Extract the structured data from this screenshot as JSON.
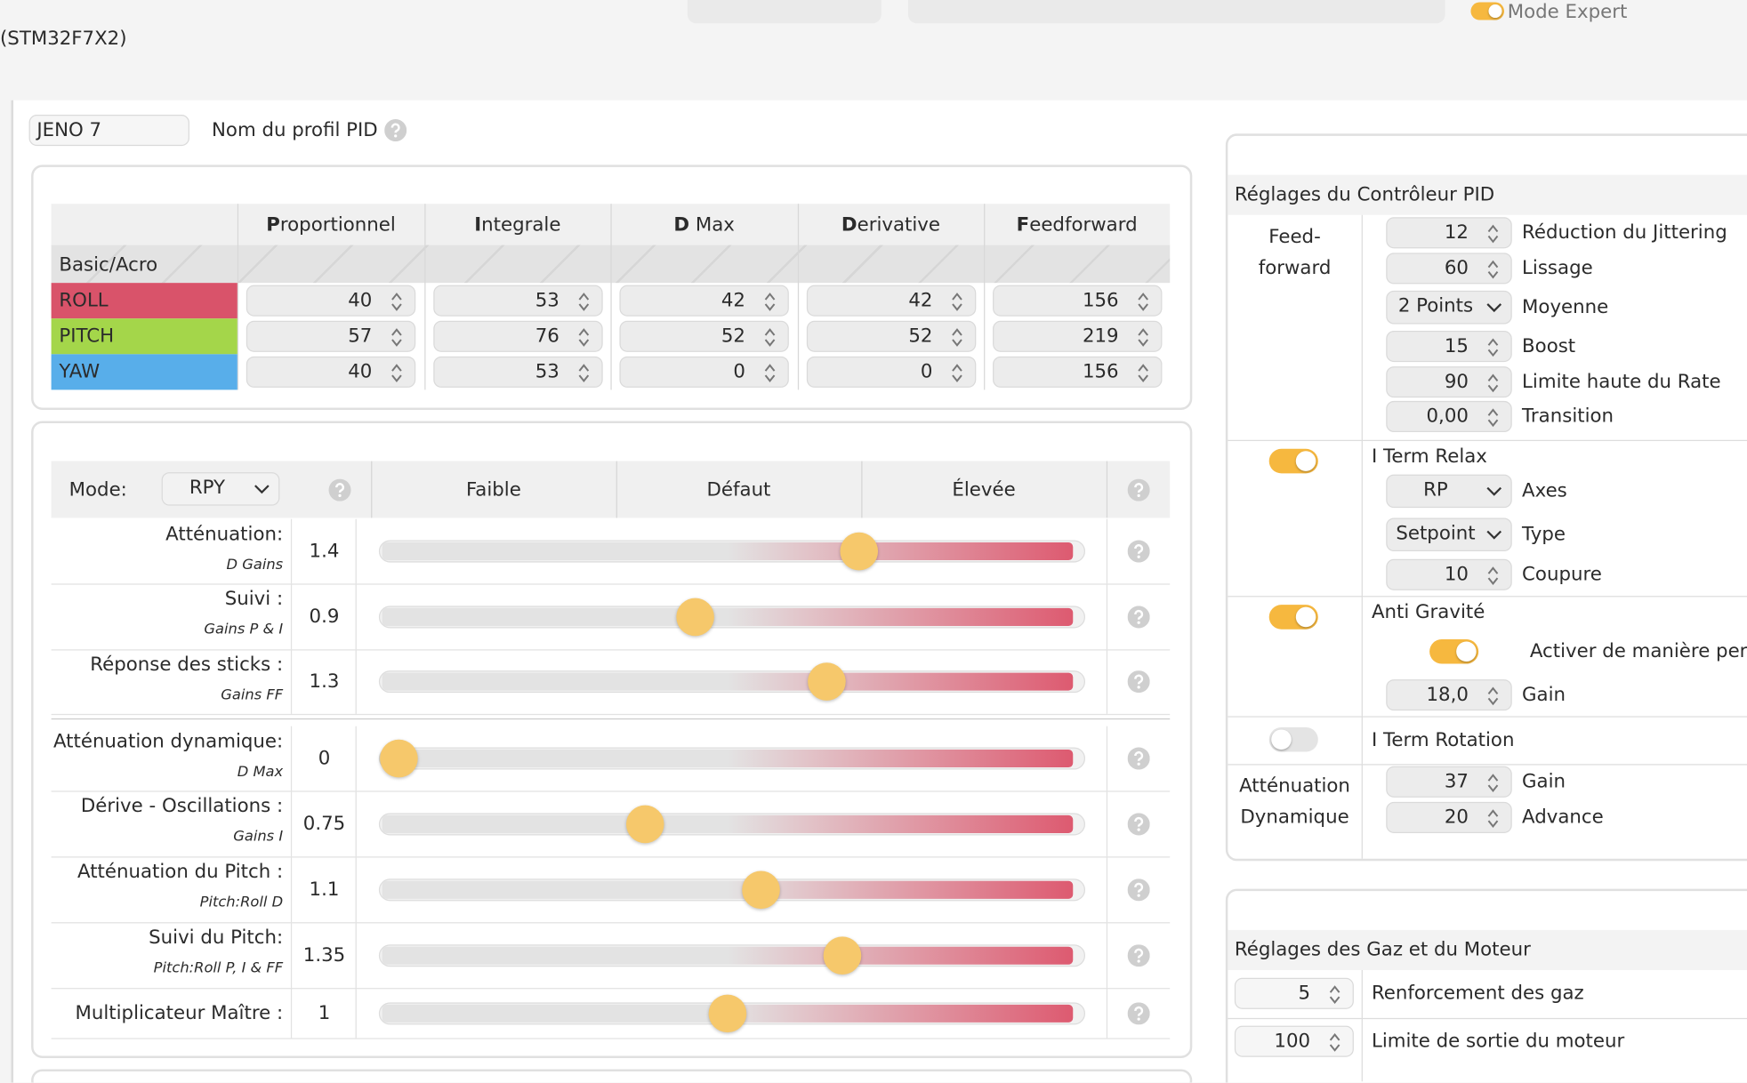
{
  "header": {
    "board": "(STM32F7X2)",
    "expert_mode": {
      "label": "Mode Expert",
      "enabled": true
    }
  },
  "profile": {
    "name": "JENO 7",
    "label": "Nom du profil PID"
  },
  "pid_table": {
    "columns": [
      "Proportionnel",
      "Integrale",
      "D Max",
      "Derivative",
      "Feedforward"
    ],
    "group": "Basic/Acro",
    "rows": [
      {
        "axis": "ROLL",
        "color": "#d9536a",
        "values": [
          40,
          53,
          42,
          42,
          156
        ]
      },
      {
        "axis": "PITCH",
        "color": "#a4d64a",
        "values": [
          57,
          76,
          52,
          52,
          219
        ]
      },
      {
        "axis": "YAW",
        "color": "#58aeea",
        "values": [
          40,
          53,
          0,
          0,
          156
        ]
      }
    ]
  },
  "sliders": {
    "mode_label": "Mode:",
    "mode": "RPY",
    "columns": [
      "Faible",
      "Défaut",
      "Élevée"
    ],
    "rows": [
      {
        "label": "Atténuation:",
        "sub": "D Gains",
        "value": 1.4
      },
      {
        "label": "Suivi :",
        "sub": "Gains P & I",
        "value": 0.9
      },
      {
        "label": "Réponse des sticks :",
        "sub": "Gains FF",
        "value": 1.3
      },
      {
        "label": "Atténuation dynamique:",
        "sub": "D Max",
        "value": 0
      },
      {
        "label": "Dérive - Oscillations :",
        "sub": "Gains I",
        "value": 0.75
      },
      {
        "label": "Atténuation du Pitch :",
        "sub": "Pitch:Roll D",
        "value": 1.1
      },
      {
        "label": "Suivi du Pitch:",
        "sub": "Pitch:Roll P, I & FF",
        "value": 1.35
      },
      {
        "label": "Multiplicateur Maître :",
        "value": 1
      }
    ]
  },
  "controller": {
    "title": "Réglages du Contrôleur PID",
    "feedforward": {
      "label": "Feed-forward",
      "fields": [
        {
          "value": 12,
          "label": "Réduction du Jittering"
        },
        {
          "value": 60,
          "label": "Lissage"
        },
        {
          "select": "2 Points",
          "label": "Moyenne"
        },
        {
          "value": 15,
          "label": "Boost"
        },
        {
          "value": 90,
          "label": "Limite haute du Rate"
        },
        {
          "value": "0,00",
          "label": "Transition"
        }
      ]
    },
    "iterm_relax": {
      "label": "I Term Relax",
      "enabled": true,
      "fields": [
        {
          "select": "RP",
          "label": "Axes"
        },
        {
          "select": "Setpoint",
          "label": "Type"
        },
        {
          "value": 10,
          "label": "Coupure"
        }
      ]
    },
    "anti_gravity": {
      "label": "Anti Gravité",
      "enabled": true,
      "permanent": {
        "label": "Activer de manière permanente",
        "enabled": true
      },
      "fields": [
        {
          "value": "18,0",
          "label": "Gain"
        }
      ]
    },
    "iterm_rotation": {
      "label": "I Term Rotation",
      "enabled": false
    },
    "dyn_damping": {
      "label": "Atténuation Dynamique",
      "fields": [
        {
          "value": 37,
          "label": "Gain"
        },
        {
          "value": 20,
          "label": "Advance"
        }
      ]
    }
  },
  "throttle": {
    "title": "Réglages des Gaz et du Moteur",
    "rows": [
      {
        "value": 5,
        "label": "Renforcement des gaz"
      },
      {
        "value": 100,
        "label": "Limite de sortie du moteur"
      }
    ]
  }
}
